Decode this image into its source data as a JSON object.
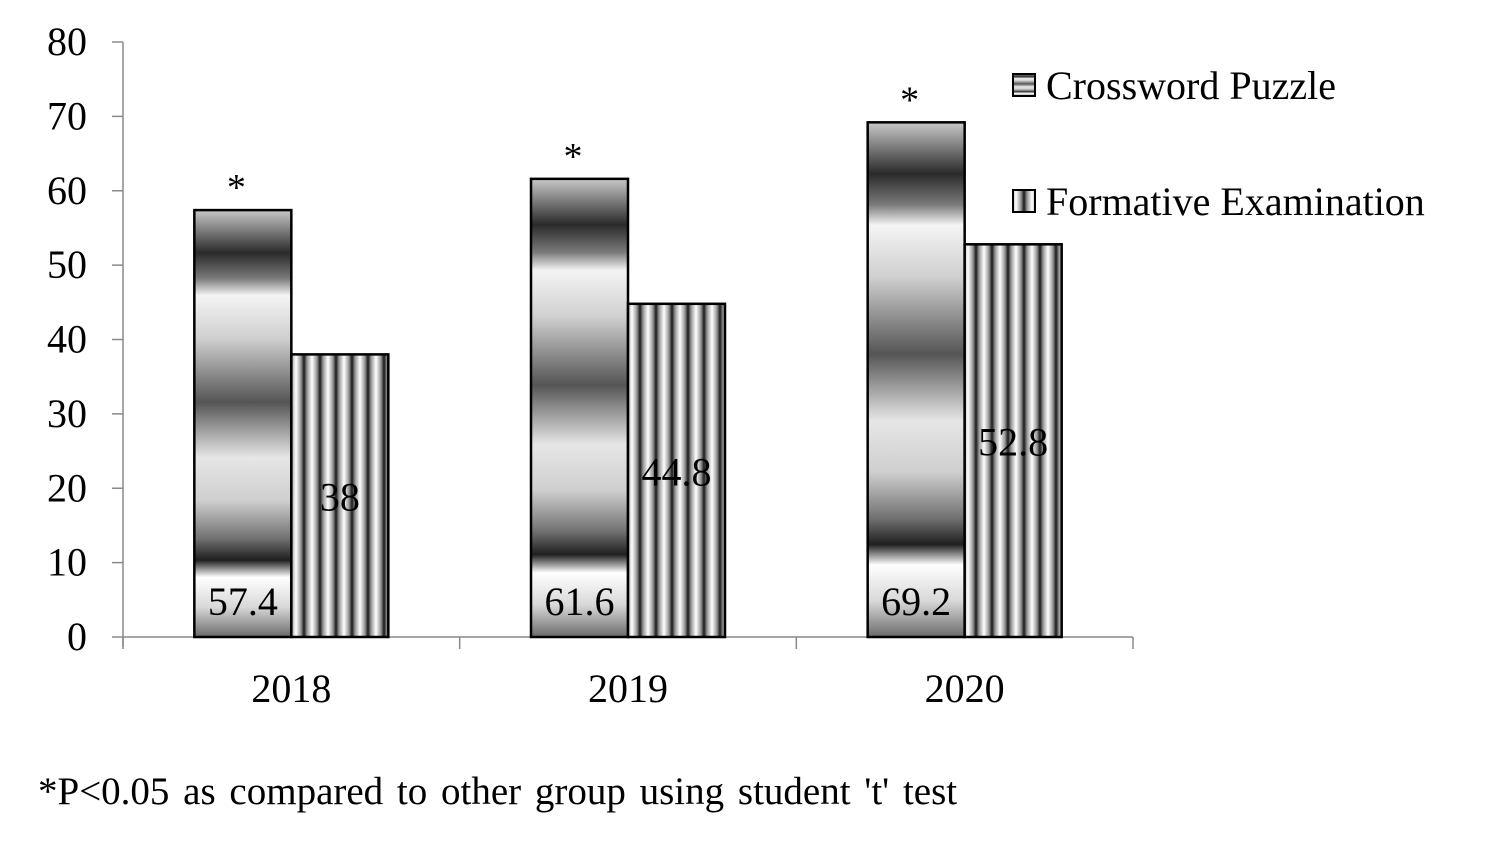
{
  "chart_data": {
    "type": "bar",
    "categories": [
      "2018",
      "2019",
      "2020"
    ],
    "series": [
      {
        "name": "Crossword Puzzle",
        "values": [
          57.4,
          61.6,
          69.2
        ],
        "labels": [
          "57.4",
          "61.6",
          "69.2"
        ],
        "significance": [
          "*",
          "*",
          "*"
        ]
      },
      {
        "name": "Formative Examination",
        "values": [
          38,
          44.8,
          52.8
        ],
        "labels": [
          "38",
          "44.8",
          "52.8"
        ]
      }
    ],
    "ylim": [
      0,
      80
    ],
    "yticks": [
      0,
      10,
      20,
      30,
      40,
      50,
      60,
      70,
      80
    ],
    "ytick_labels": [
      "0",
      "10",
      "20",
      "30",
      "40",
      "50",
      "60",
      "70",
      "80"
    ],
    "xlabel": "",
    "ylabel": "",
    "title": "",
    "legend_position": "top-right",
    "footnote": "*P<0.05 as compared to other group using student 't' test"
  }
}
